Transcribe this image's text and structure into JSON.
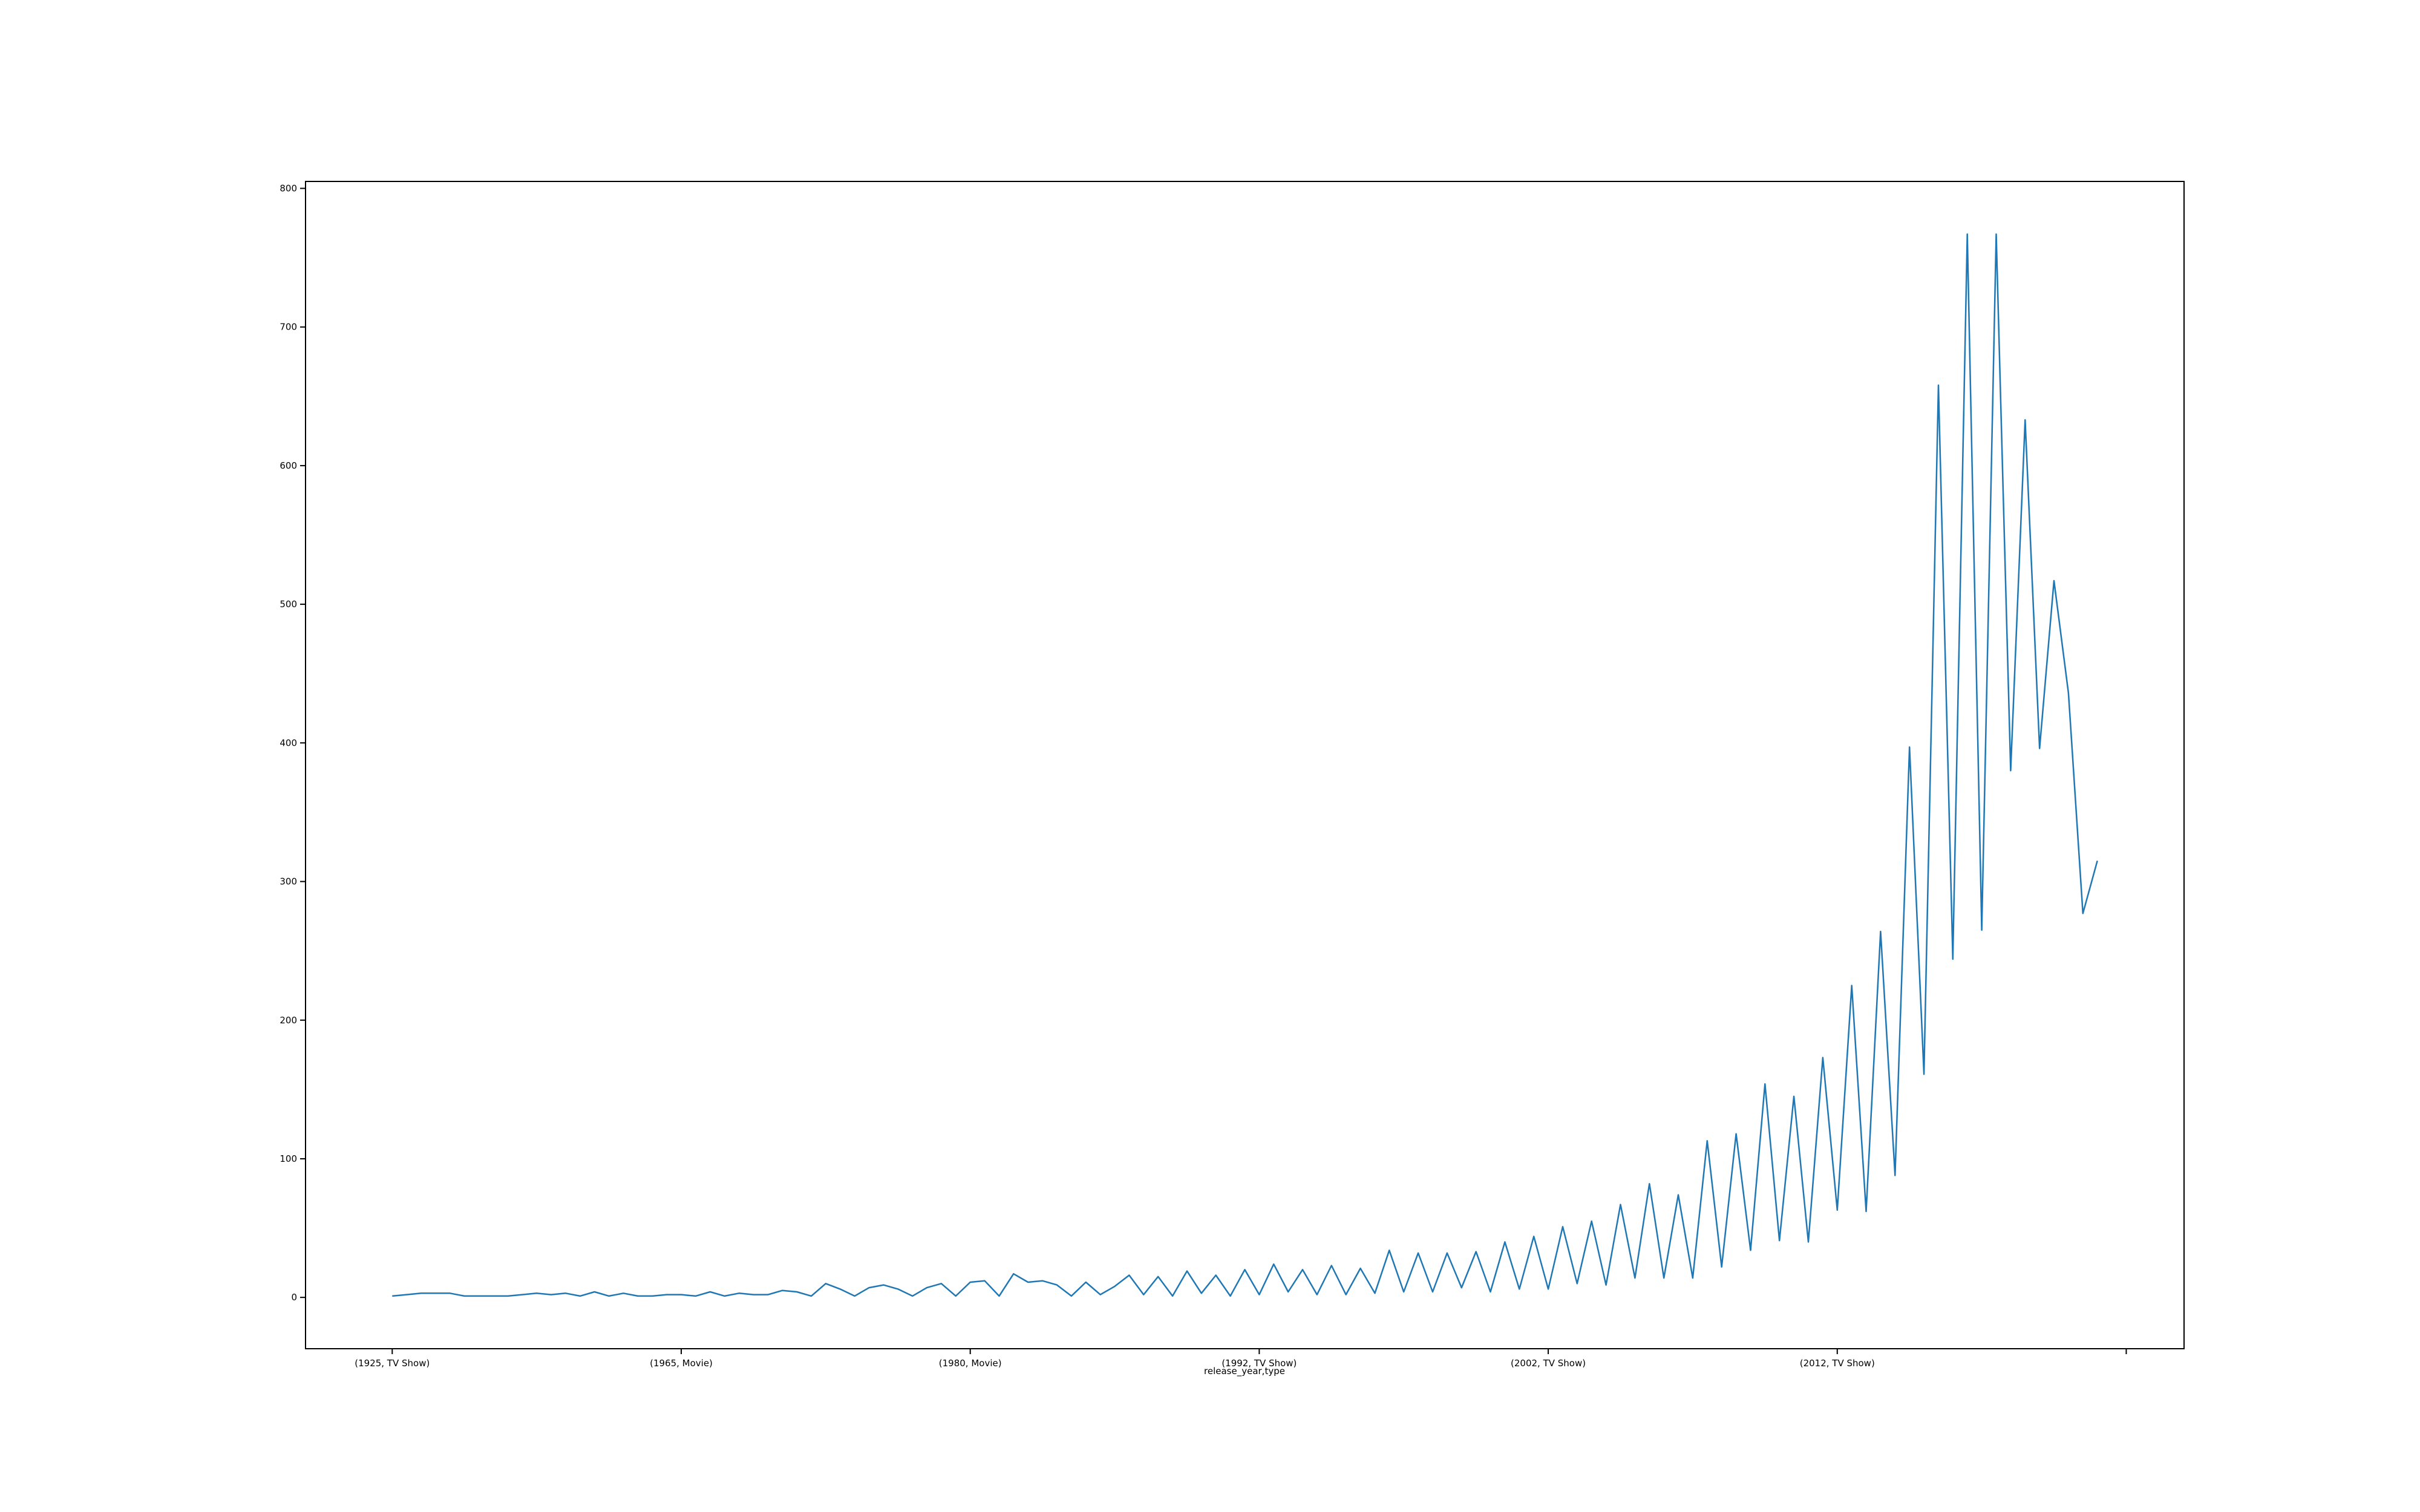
{
  "chart_data": {
    "type": "line",
    "title": "",
    "xlabel": "release_year,type",
    "ylabel": "",
    "x_tick_labels": [
      {
        "index": 0,
        "label": "(1925, TV Show)"
      },
      {
        "index": 20,
        "label": "(1965, Movie)"
      },
      {
        "index": 40,
        "label": "(1980, Movie)"
      },
      {
        "index": 60,
        "label": "(1992, TV Show)"
      },
      {
        "index": 80,
        "label": "(2002, TV Show)"
      },
      {
        "index": 100,
        "label": "(2012, TV Show)"
      },
      {
        "index": 120,
        "label": ""
      }
    ],
    "y_ticks": [
      0,
      100,
      200,
      300,
      400,
      500,
      600,
      700,
      800
    ],
    "ylim": [
      -37,
      805
    ],
    "xlim": [
      -6,
      124
    ],
    "grid": false,
    "legend": "none",
    "series": [
      {
        "color": "#1f77b4",
        "values": [
          1,
          2,
          3,
          3,
          3,
          1,
          1,
          1,
          1,
          2,
          3,
          2,
          3,
          1,
          4,
          1,
          3,
          1,
          1,
          2,
          2,
          1,
          4,
          1,
          3,
          2,
          2,
          5,
          4,
          1,
          10,
          6,
          1,
          7,
          9,
          6,
          1,
          7,
          10,
          1,
          11,
          12,
          1,
          17,
          11,
          12,
          9,
          1,
          11,
          2,
          8,
          16,
          2,
          15,
          1,
          19,
          3,
          16,
          1,
          20,
          2,
          24,
          4,
          20,
          2,
          23,
          2,
          21,
          3,
          34,
          4,
          32,
          4,
          32,
          7,
          33,
          4,
          40,
          6,
          44,
          6,
          51,
          10,
          55,
          9,
          67,
          14,
          82,
          14,
          74,
          14,
          113,
          22,
          118,
          34,
          154,
          41,
          145,
          40,
          173,
          63,
          225,
          62,
          264,
          88,
          397,
          161,
          658,
          244,
          767,
          265,
          767,
          380,
          633,
          396,
          517,
          436,
          277,
          315
        ]
      }
    ]
  }
}
